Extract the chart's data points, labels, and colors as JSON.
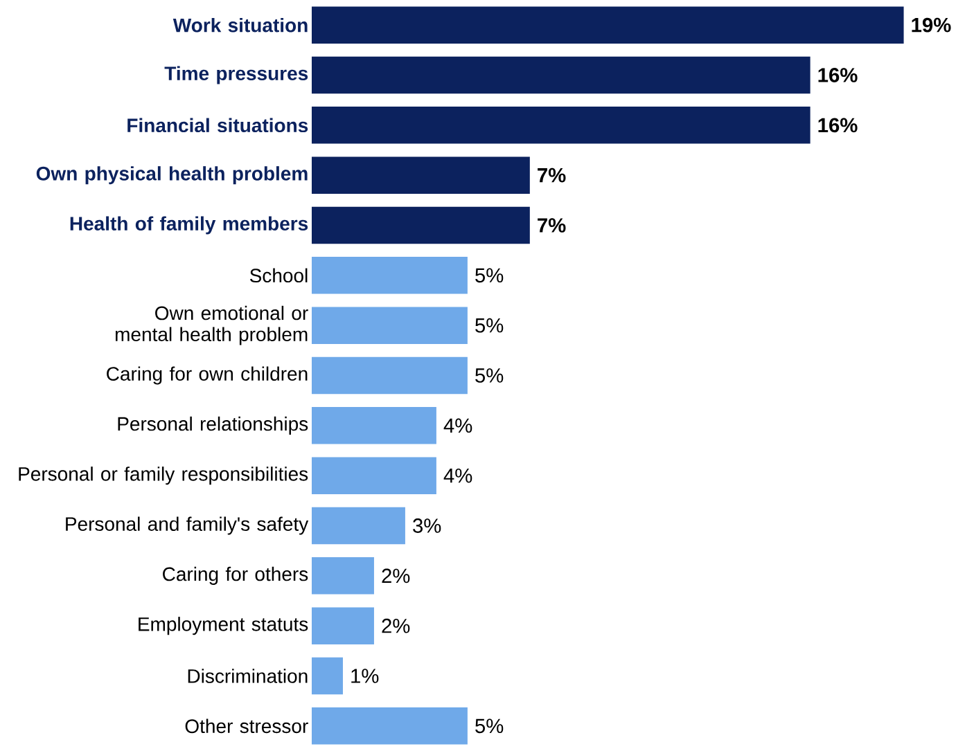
{
  "chart_data": {
    "type": "bar",
    "orientation": "horizontal",
    "categories": [
      "Work situation",
      "Time pressures",
      "Financial situations",
      "Own physical health problem",
      "Health of family members",
      "School",
      "Own emotional or mental health problem",
      "Caring for own children",
      "Personal relationships",
      "Personal or family responsibilities",
      "Personal and family's safety",
      "Caring for others",
      "Employment statuts",
      "Discrimination",
      "Other stressor"
    ],
    "values": [
      19,
      16,
      16,
      7,
      7,
      5,
      5,
      5,
      4,
      4,
      3,
      2,
      2,
      1,
      5
    ],
    "value_labels": [
      "19%",
      "16%",
      "16%",
      "7%",
      "7%",
      "5%",
      "5%",
      "5%",
      "4%",
      "4%",
      "3%",
      "2%",
      "2%",
      "1%",
      "5%"
    ],
    "colors": [
      "#0c225e",
      "#0c225e",
      "#0c225e",
      "#0c225e",
      "#0c225e",
      "#6fa9e9",
      "#6fa9e9",
      "#6fa9e9",
      "#6fa9e9",
      "#6fa9e9",
      "#6fa9e9",
      "#6fa9e9",
      "#6fa9e9",
      "#6fa9e9",
      "#6fa9e9"
    ],
    "stacked": false
  }
}
